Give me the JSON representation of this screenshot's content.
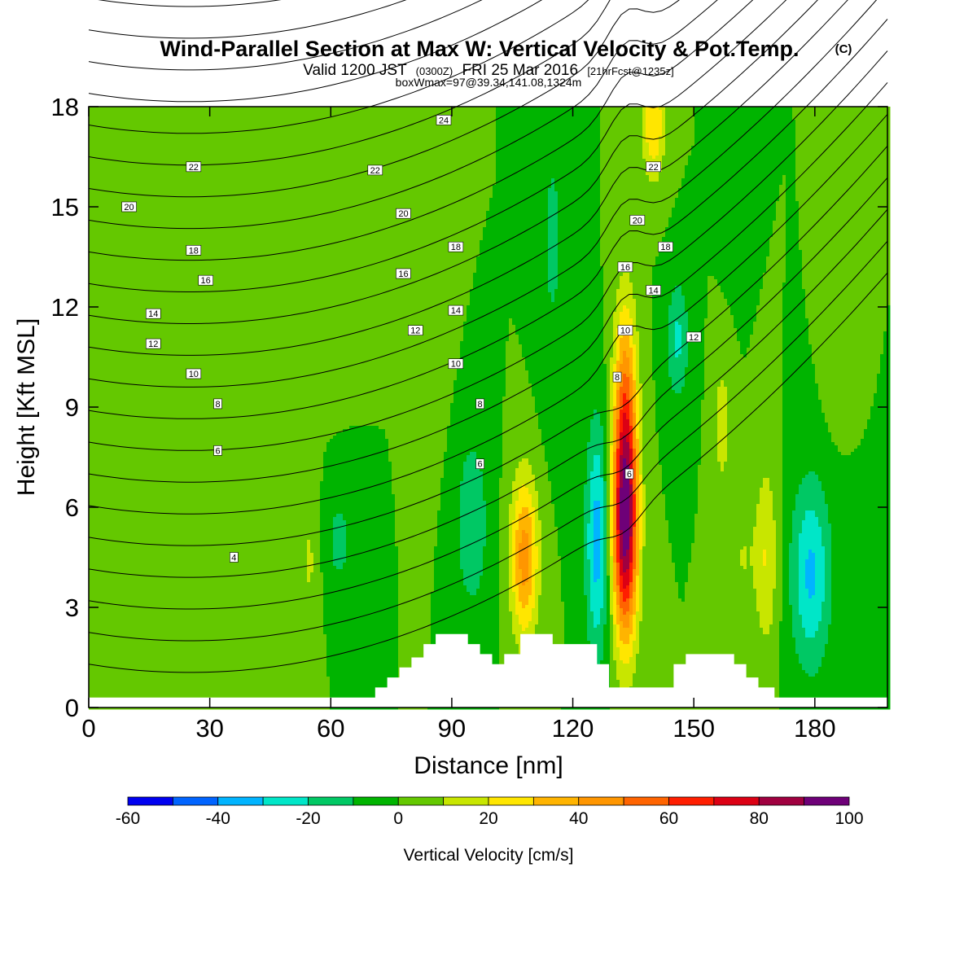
{
  "title": "Wind-Parallel Section at Max W: Vertical Velocity & Pot.Temp.",
  "title_mark": "(C)",
  "subtitle": {
    "lead": "Valid 1200 JST",
    "utc": "(0300Z)",
    "date": "FRI 25 Mar 2016",
    "fcst": "[21hrFcst@1235z]"
  },
  "info": "boxWmax=97@39.34,141.08,1324m",
  "colors": {
    "bins": [
      "#0000f0",
      "#0064ff",
      "#00b4ff",
      "#00e6c8",
      "#00c864",
      "#00b400",
      "#64c800",
      "#c8e600",
      "#ffe600",
      "#ffb400",
      "#ff9600",
      "#ff6400",
      "#ff1e00",
      "#dc0014",
      "#a00040",
      "#6e0078"
    ],
    "contour": "#000000",
    "terrain": "#ffffff"
  },
  "chart_data": {
    "type": "heatmap",
    "xlabel": "Distance [nm]",
    "ylabel": "Height [Kft MSL]",
    "xlim": [
      0,
      198
    ],
    "ylim": [
      0,
      18
    ],
    "xticks": [
      "0",
      "30",
      "60",
      "90",
      "120",
      "150",
      "180"
    ],
    "yticks": [
      "0",
      "3",
      "6",
      "9",
      "12",
      "15",
      "18"
    ],
    "colorbar": {
      "label": "Vertical Velocity [cm/s]",
      "levels": [
        -60,
        -50,
        -40,
        -30,
        -20,
        -10,
        0,
        10,
        20,
        30,
        40,
        50,
        60,
        70,
        80,
        90,
        100
      ],
      "tick_labels": [
        "-60",
        "-40",
        "-20",
        "0",
        "20",
        "40",
        "60",
        "80",
        "100"
      ]
    },
    "w_features": [
      {
        "x": 133,
        "z": 5.5,
        "sx": 2.2,
        "sz": 2.4,
        "w": 95
      },
      {
        "x": 133,
        "z": 9.5,
        "sx": 2.0,
        "sz": 2.2,
        "w": 35
      },
      {
        "x": 140,
        "z": 17.5,
        "sx": 2.0,
        "sz": 1.2,
        "w": 30
      },
      {
        "x": 108,
        "z": 4.5,
        "sx": 2.4,
        "sz": 1.7,
        "w": 45
      },
      {
        "x": 126,
        "z": 5.0,
        "sx": 2.0,
        "sz": 2.5,
        "w": -35
      },
      {
        "x": 95,
        "z": 5.5,
        "sx": 3.0,
        "sz": 2.0,
        "w": -18
      },
      {
        "x": 62,
        "z": 5.0,
        "sx": 3.5,
        "sz": 1.5,
        "w": -12
      },
      {
        "x": 179,
        "z": 4.0,
        "sx": 3.5,
        "sz": 2.0,
        "w": -32
      },
      {
        "x": 162,
        "z": 4.5,
        "sx": 2.5,
        "sz": 1.5,
        "w": 10
      },
      {
        "x": 157,
        "z": 8.5,
        "sx": 1.5,
        "sz": 1.5,
        "w": 15
      },
      {
        "x": 146,
        "z": 11.0,
        "sx": 2.0,
        "sz": 1.3,
        "w": -22
      },
      {
        "x": 168,
        "z": 4.5,
        "sx": 2.0,
        "sz": 2.0,
        "w": 20
      },
      {
        "x": 55,
        "z": 4.5,
        "sx": 2.0,
        "sz": 2.0,
        "w": 12
      },
      {
        "x": 30,
        "z": 3.5,
        "sx": 3.5,
        "sz": 2.0,
        "w": 8
      },
      {
        "x": 85,
        "z": 13.0,
        "sx": 3.0,
        "sz": 3.0,
        "w": 8
      },
      {
        "x": 60,
        "z": 14.0,
        "sx": 4.0,
        "sz": 3.0,
        "w": 8
      },
      {
        "x": 160,
        "z": 15.5,
        "sx": 2.0,
        "sz": 1.5,
        "w": -10
      },
      {
        "x": 185,
        "z": 11.0,
        "sx": 2.0,
        "sz": 1.5,
        "w": 10
      },
      {
        "x": 115,
        "z": 14.0,
        "sx": 2.5,
        "sz": 3.0,
        "w": -12
      }
    ],
    "terrain_kft": [
      [
        0,
        0.3
      ],
      [
        71,
        0.3
      ],
      [
        71,
        0.6
      ],
      [
        74,
        0.6
      ],
      [
        74,
        0.9
      ],
      [
        77,
        0.9
      ],
      [
        77,
        1.2
      ],
      [
        80,
        1.2
      ],
      [
        80,
        1.5
      ],
      [
        83,
        1.5
      ],
      [
        83,
        1.9
      ],
      [
        86,
        1.9
      ],
      [
        86,
        2.2
      ],
      [
        94,
        2.2
      ],
      [
        94,
        1.9
      ],
      [
        97,
        1.9
      ],
      [
        97,
        1.6
      ],
      [
        100,
        1.6
      ],
      [
        100,
        1.3
      ],
      [
        103,
        1.3
      ],
      [
        103,
        1.6
      ],
      [
        107,
        1.6
      ],
      [
        107,
        2.2
      ],
      [
        115,
        2.2
      ],
      [
        115,
        1.9
      ],
      [
        126,
        1.9
      ],
      [
        126,
        1.3
      ],
      [
        129,
        1.3
      ],
      [
        129,
        0.6
      ],
      [
        145,
        0.6
      ],
      [
        145,
        1.3
      ],
      [
        148,
        1.3
      ],
      [
        148,
        1.6
      ],
      [
        160,
        1.6
      ],
      [
        160,
        1.3
      ],
      [
        163,
        1.3
      ],
      [
        163,
        0.9
      ],
      [
        166,
        0.9
      ],
      [
        166,
        0.6
      ],
      [
        170,
        0.6
      ],
      [
        170,
        0.3
      ],
      [
        198,
        0.3
      ]
    ],
    "theta_levels": [
      2,
      4,
      6,
      8,
      10,
      12,
      14,
      16,
      18,
      20,
      22,
      24
    ],
    "theta_label_positions": [
      {
        "value": "24",
        "x": 88,
        "z": 17.6
      },
      {
        "value": "22",
        "x": 26,
        "z": 16.2
      },
      {
        "value": "22",
        "x": 71,
        "z": 16.1
      },
      {
        "value": "22",
        "x": 140,
        "z": 16.2
      },
      {
        "value": "20",
        "x": 10,
        "z": 15.0
      },
      {
        "value": "20",
        "x": 78,
        "z": 14.8
      },
      {
        "value": "20",
        "x": 136,
        "z": 14.6
      },
      {
        "value": "18",
        "x": 26,
        "z": 13.7
      },
      {
        "value": "18",
        "x": 91,
        "z": 13.8
      },
      {
        "value": "18",
        "x": 143,
        "z": 13.8
      },
      {
        "value": "16",
        "x": 29,
        "z": 12.8
      },
      {
        "value": "16",
        "x": 78,
        "z": 13.0
      },
      {
        "value": "16",
        "x": 133,
        "z": 13.2
      },
      {
        "value": "14",
        "x": 16,
        "z": 11.8
      },
      {
        "value": "14",
        "x": 91,
        "z": 11.9
      },
      {
        "value": "14",
        "x": 140,
        "z": 12.5
      },
      {
        "value": "12",
        "x": 16,
        "z": 10.9
      },
      {
        "value": "12",
        "x": 81,
        "z": 11.3
      },
      {
        "value": "12",
        "x": 150,
        "z": 11.1
      },
      {
        "value": "10",
        "x": 26,
        "z": 10.0
      },
      {
        "value": "10",
        "x": 91,
        "z": 10.3
      },
      {
        "value": "10",
        "x": 133,
        "z": 11.3
      },
      {
        "value": "8",
        "x": 32,
        "z": 9.1
      },
      {
        "value": "8",
        "x": 97,
        "z": 9.1
      },
      {
        "value": "8",
        "x": 131,
        "z": 9.9
      },
      {
        "value": "6",
        "x": 32,
        "z": 7.7
      },
      {
        "value": "6",
        "x": 97,
        "z": 7.3
      },
      {
        "value": "6",
        "x": 134,
        "z": 7.0
      },
      {
        "value": "4",
        "x": 36,
        "z": 4.5
      }
    ]
  }
}
